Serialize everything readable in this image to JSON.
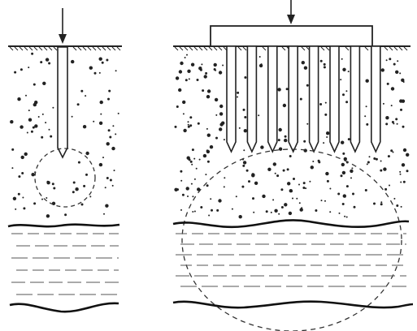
{
  "figure": {
    "panels": [
      {
        "id": "single-pile",
        "pile_count": 1
      },
      {
        "id": "pile-group",
        "pile_count": 8
      }
    ],
    "colors": {
      "ink": "#222222",
      "background": "#ffffff",
      "dash": "#333333"
    }
  }
}
